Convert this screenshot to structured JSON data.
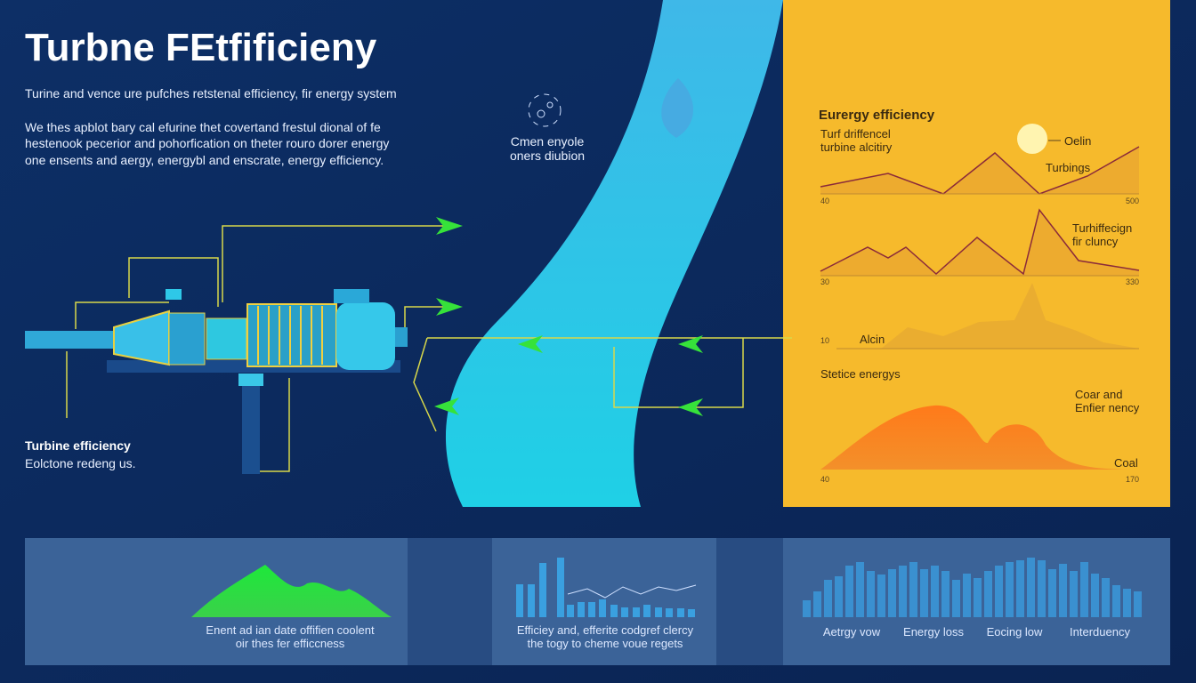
{
  "header": {
    "title": "Turbne FEtfificieny",
    "intro": "Turine and vence ure pufches retstenal efficiency, fir energy system",
    "paragraph": [
      "We thes apblot bary cal efurine thet covertand frestul dional of fe",
      "hestenook pecerior and pohorfication on theter rouro dorer energy",
      "one ensents and aergy, energybl and enscrate, energy efficiency."
    ]
  },
  "icon_caption": [
    "Cmen enyole",
    "oners diubion"
  ],
  "turbine_label": {
    "title": "Turbine efficiency",
    "subtitle": "Eolctone redeng us."
  },
  "right_panel": {
    "heading": "Eurergy efficiency",
    "chart1": {
      "label": [
        "Turf driffencel",
        "turbine alcitiry"
      ],
      "sun_label": "Oelin",
      "series_label": "Turbings",
      "axis": [
        "40",
        "500"
      ]
    },
    "chart2": {
      "label": [
        "Turhiffecign",
        "fir cluncy"
      ],
      "axis": [
        "30",
        "330"
      ]
    },
    "chart3": {
      "axis_start": "10",
      "label": "Alcin"
    },
    "chart4": {
      "heading": "Stetice energys",
      "label": [
        "Coar and",
        "Enfier nency"
      ],
      "series_label": "Coal",
      "axis": [
        "40",
        "170"
      ]
    }
  },
  "bottom_panels": [
    {
      "caption": [
        "Enent ad ian date offifien coolent",
        "oir thes fer efficcness"
      ]
    },
    {
      "caption": [
        "Efficiey and, efferite codgref clercy",
        "the togy to cheme voue regets"
      ]
    },
    {
      "labels": [
        "Aetrgy vow",
        "Energy loss",
        "Eocing low",
        "Interduency"
      ]
    }
  ]
}
